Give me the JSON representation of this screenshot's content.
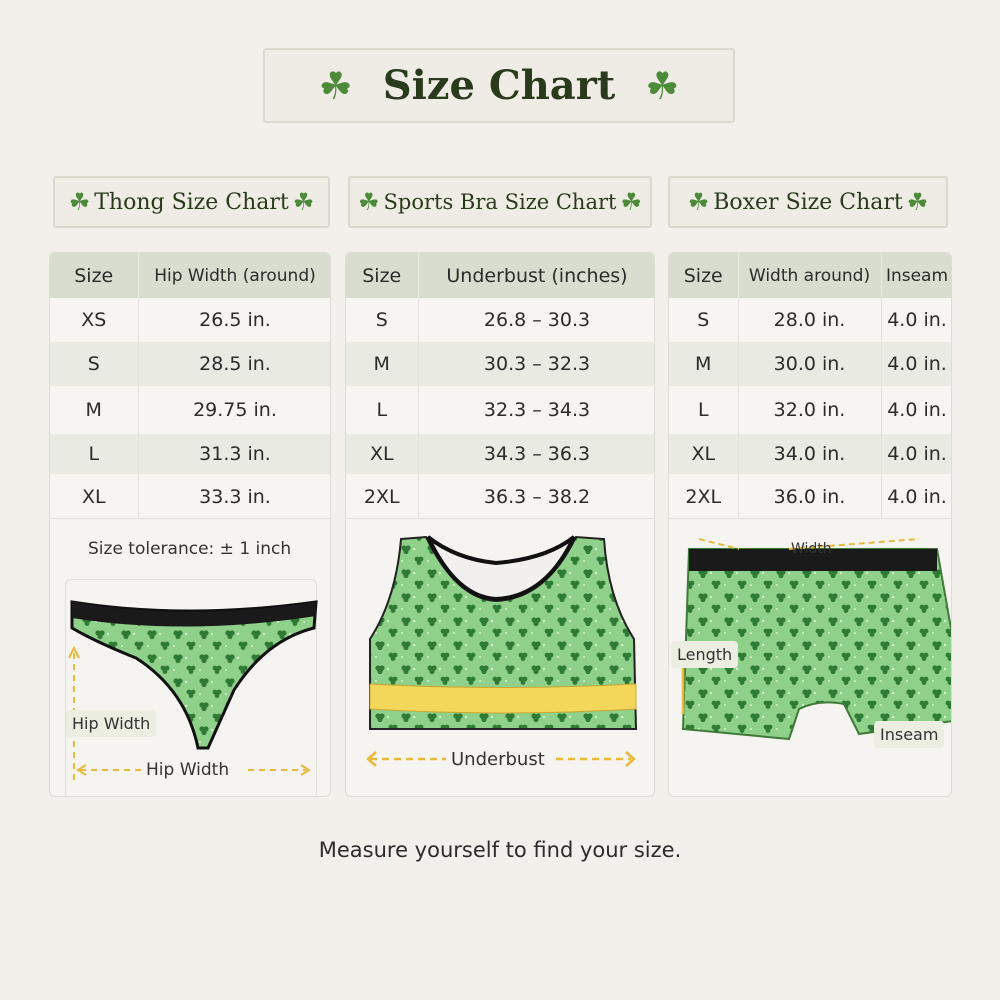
{
  "title": "Size Chart",
  "icon": "shamrock-icon",
  "colors": {
    "accent": "#4d8a3a",
    "header_bg": "#d9ddcf",
    "garment_green": "#8ecf85",
    "measure_yellow": "#e8b93a"
  },
  "thong": {
    "heading": "Thong Size Chart",
    "columns": [
      "Size",
      "Hip Width (around)"
    ],
    "rows": [
      [
        "XS",
        "26.5 in."
      ],
      [
        "S",
        "28.5 in."
      ],
      [
        "M",
        "29.75 in."
      ],
      [
        "L",
        "31.3 in."
      ],
      [
        "XL",
        "33.3 in."
      ]
    ],
    "tolerance": "Size tolerance: ± 1 inch",
    "label_vertical": "Hip Width",
    "label_horizontal": "Hip Width"
  },
  "bra": {
    "heading": "Sports Bra Size Chart",
    "columns": [
      "Size",
      "Underbust (inches)"
    ],
    "rows": [
      [
        "S",
        "26.8 – 30.3"
      ],
      [
        "M",
        "30.3 – 32.3"
      ],
      [
        "L",
        "32.3 – 34.3"
      ],
      [
        "XL",
        "34.3 – 36.3"
      ],
      [
        "2XL",
        "36.3 – 38.2"
      ]
    ],
    "label_underbust": "Underbust"
  },
  "boxer": {
    "heading": "Boxer Size Chart",
    "columns": [
      "Size",
      "Width around)",
      "Inseam"
    ],
    "rows": [
      [
        "S",
        "28.0 in.",
        "4.0 in."
      ],
      [
        "M",
        "30.0 in.",
        "4.0 in."
      ],
      [
        "L",
        "32.0 in.",
        "4.0 in."
      ],
      [
        "XL",
        "34.0 in.",
        "4.0 in."
      ],
      [
        "2XL",
        "36.0 in.",
        "4.0 in."
      ]
    ],
    "label_width": "Width",
    "label_length": "Length",
    "label_inseam": "Inseam"
  },
  "footer": "Measure yourself to find your size."
}
